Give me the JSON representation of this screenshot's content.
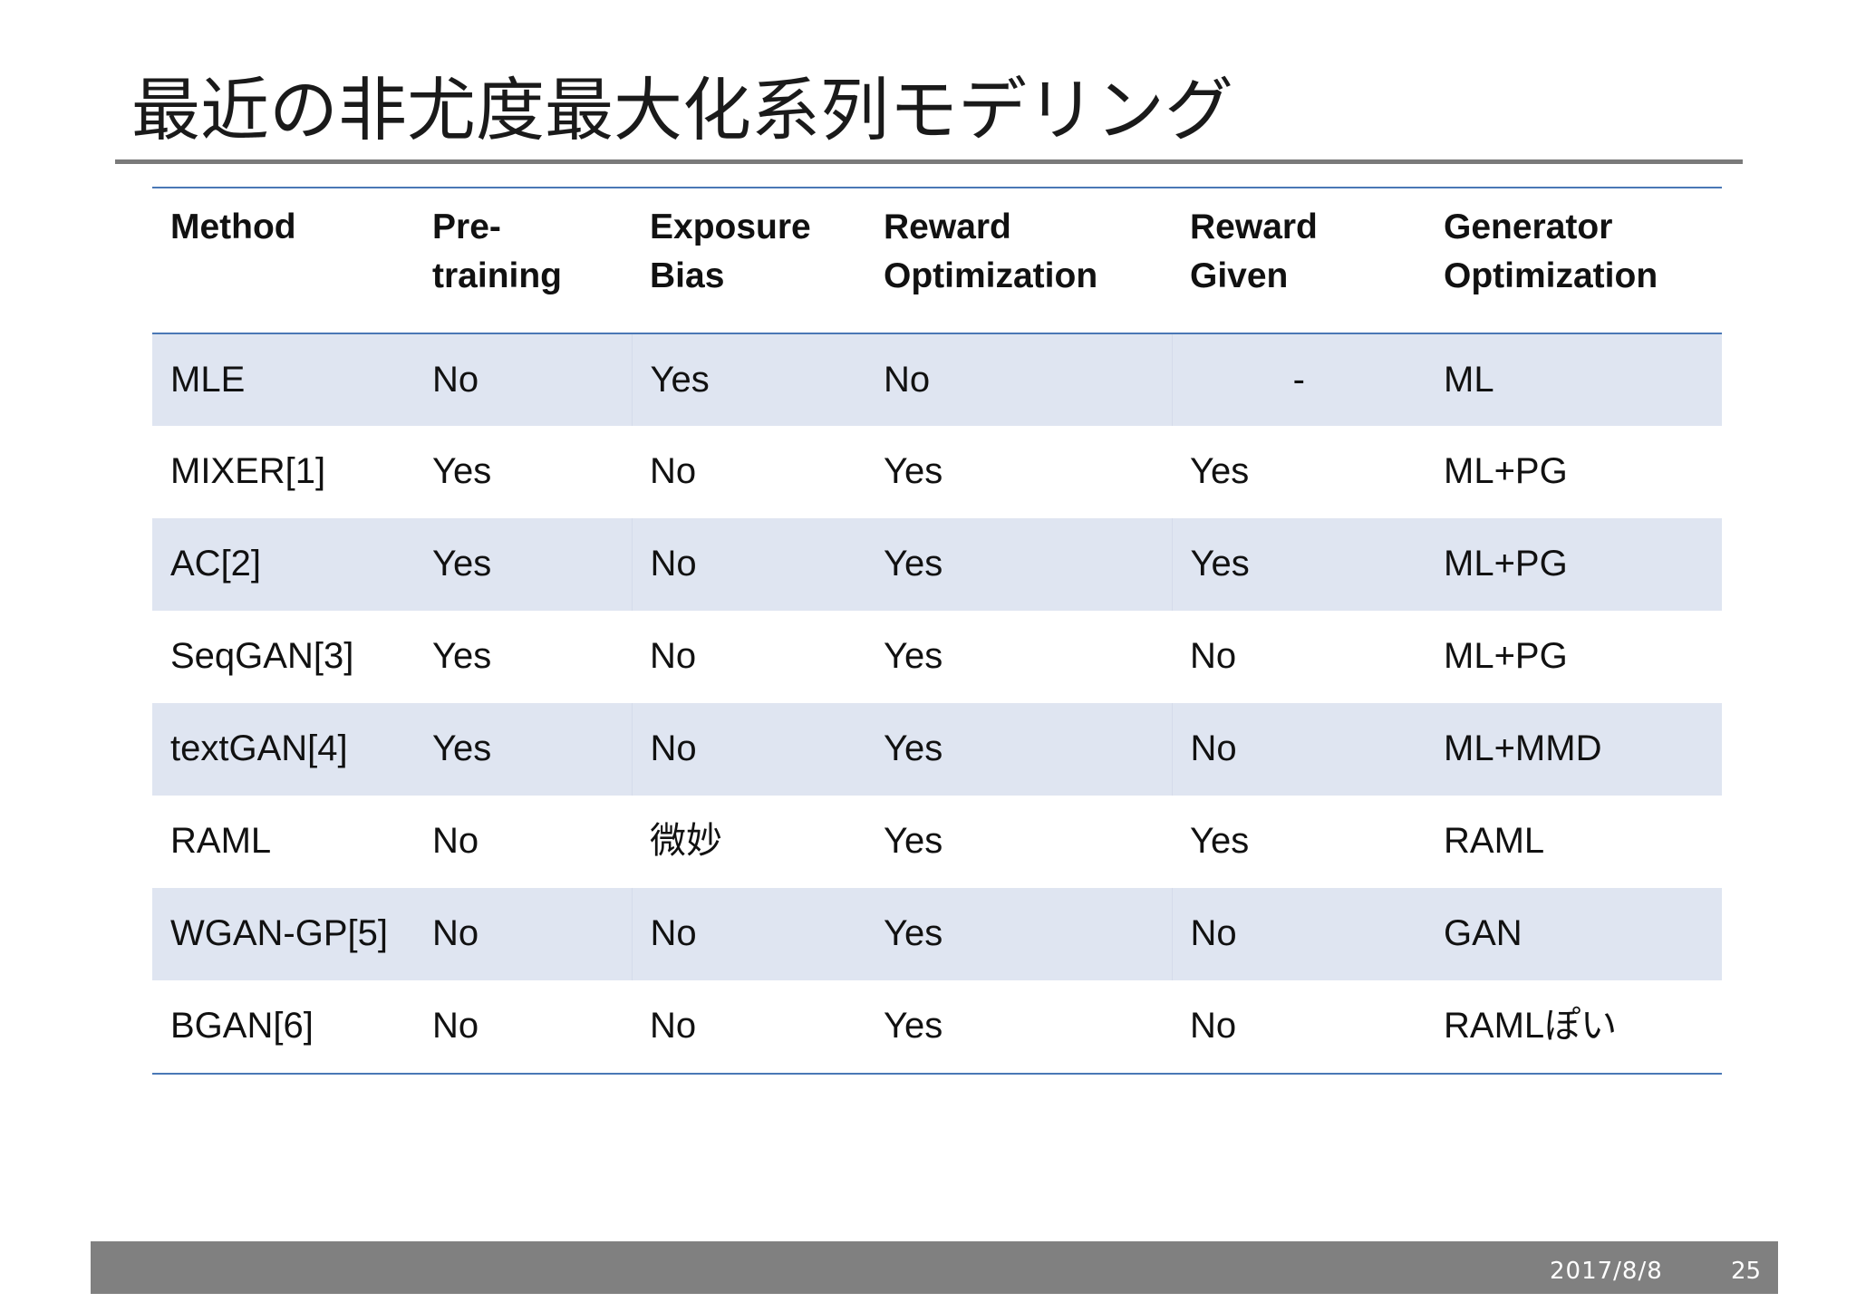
{
  "title": "最近の非尤度最大化系列モデリング",
  "table": {
    "headers": [
      [
        "Method",
        ""
      ],
      [
        "Pre-",
        "training"
      ],
      [
        "Exposure",
        "Bias"
      ],
      [
        "Reward",
        "Optimization"
      ],
      [
        "Reward",
        "Given"
      ],
      [
        "Generator",
        "Optimization"
      ]
    ],
    "rows": [
      [
        "MLE",
        "No",
        "Yes",
        "No",
        "-",
        "ML"
      ],
      [
        "MIXER[1]",
        "Yes",
        "No",
        "Yes",
        "Yes",
        "ML+PG"
      ],
      [
        "AC[2]",
        "Yes",
        "No",
        "Yes",
        "Yes",
        "ML+PG"
      ],
      [
        "SeqGAN[3]",
        "Yes",
        "No",
        "Yes",
        "No",
        "ML+PG"
      ],
      [
        "textGAN[4]",
        "Yes",
        "No",
        "Yes",
        "No",
        "ML+MMD"
      ],
      [
        "RAML",
        "No",
        "微妙",
        "Yes",
        "Yes",
        "RAML"
      ],
      [
        "WGAN-GP[5]",
        "No",
        "No",
        "Yes",
        "No",
        "GAN"
      ],
      [
        "BGAN[6]",
        "No",
        "No",
        "Yes",
        "No",
        "RAMLぽい"
      ]
    ]
  },
  "footer": {
    "date": "2017/8/8",
    "page": "25"
  },
  "colors": {
    "band": "#dfe5f1",
    "rule": "#4a78b6",
    "footer_bar": "#808080"
  }
}
